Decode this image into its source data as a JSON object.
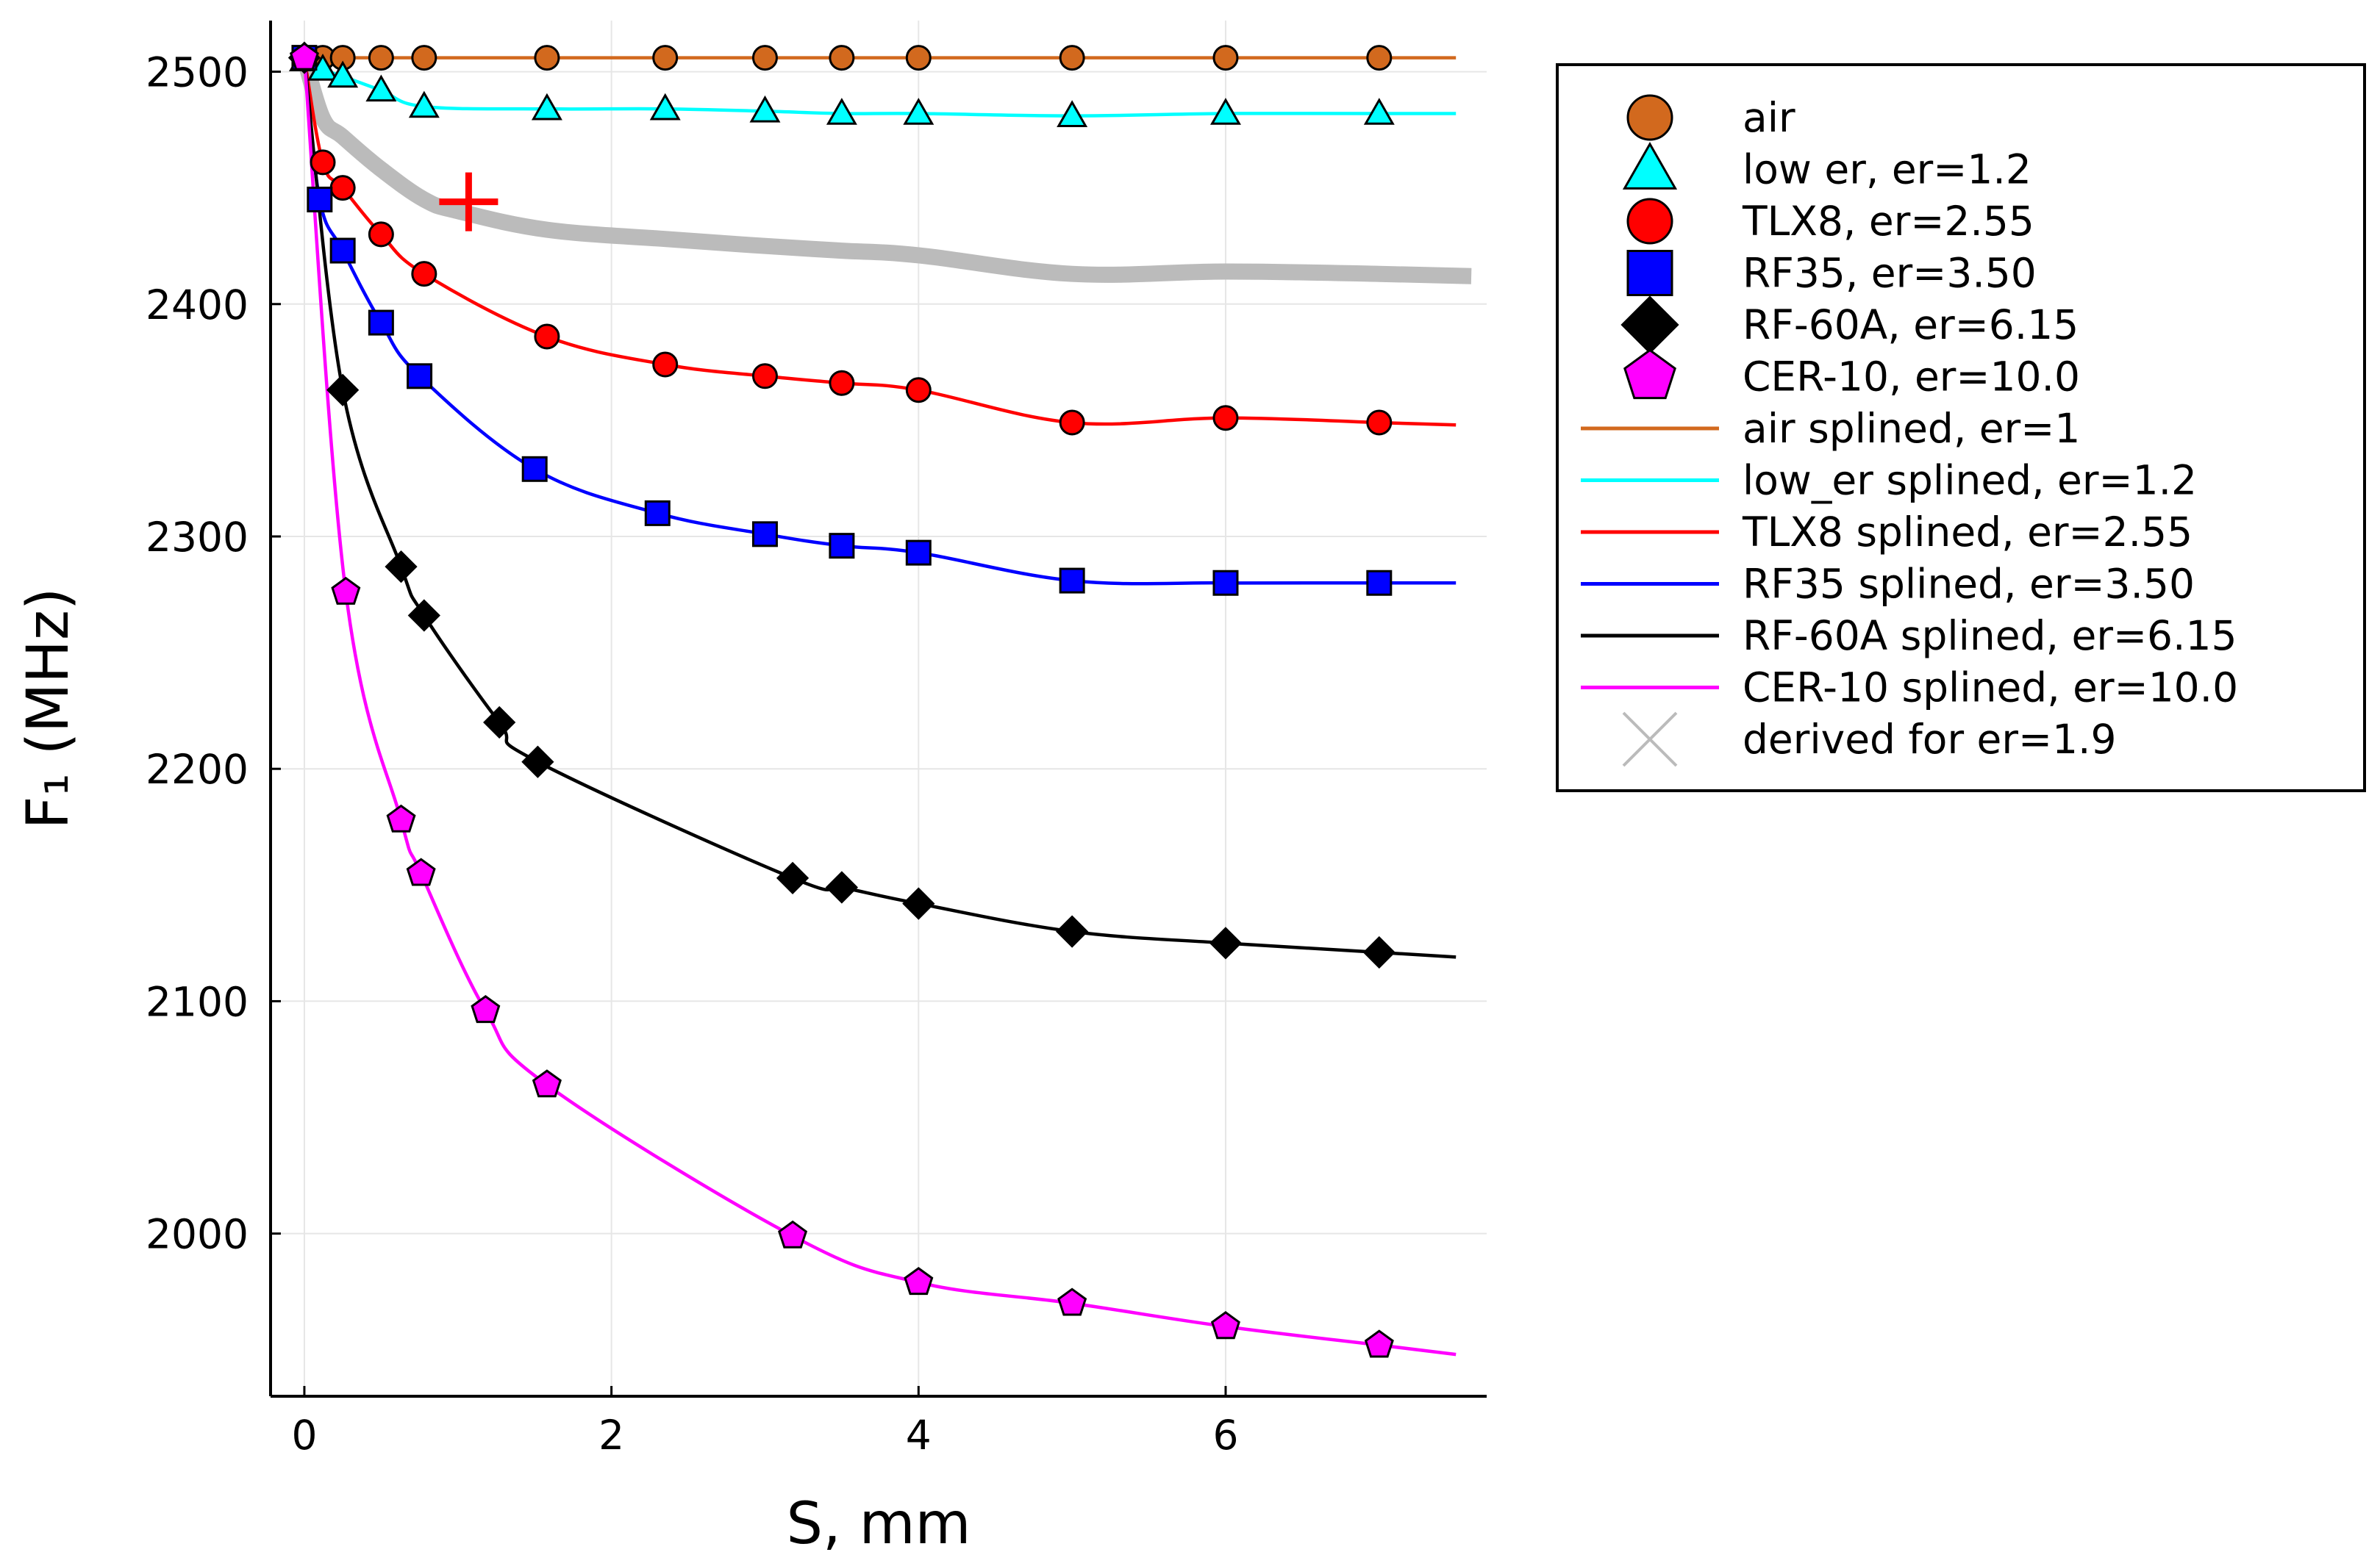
{
  "chart_data": {
    "type": "line",
    "xlabel": "S, mm",
    "ylabel": "F₁ (MHz)",
    "xlim": [
      -0.22,
      7.7
    ],
    "ylim": [
      1930,
      2522
    ],
    "xticks": [
      0,
      2,
      4,
      6
    ],
    "yticks": [
      2000,
      2100,
      2200,
      2300,
      2400,
      2500
    ],
    "grid": true,
    "legend_position": "outside-top-right",
    "marker_series": [
      {
        "name": "air",
        "color": "#D2691E",
        "marker": "circle",
        "x": [
          0,
          0.12,
          0.25,
          0.5,
          0.78,
          1.58,
          2.35,
          3.0,
          3.5,
          4.0,
          5.0,
          6.0,
          7.0
        ],
        "y": [
          2506,
          2506,
          2506,
          2506,
          2506,
          2506,
          2506,
          2506,
          2506,
          2506,
          2506,
          2506,
          2506
        ]
      },
      {
        "name": "low er, er=1.2",
        "color": "#00FFFF",
        "marker": "triangle",
        "x": [
          0,
          0.12,
          0.25,
          0.5,
          0.78,
          1.58,
          2.35,
          3.0,
          3.5,
          4.0,
          5.0,
          6.0,
          7.0
        ],
        "y": [
          2505,
          2501,
          2498,
          2492,
          2485,
          2484,
          2484,
          2483,
          2482,
          2482,
          2481,
          2482,
          2482
        ]
      },
      {
        "name": "TLX8, er=2.55",
        "color": "#FF0000",
        "marker": "circle",
        "x": [
          0,
          0.12,
          0.25,
          0.5,
          0.78,
          1.58,
          2.35,
          3.0,
          3.5,
          4.0,
          5.0,
          6.0,
          7.0
        ],
        "y": [
          2506,
          2461,
          2450,
          2430,
          2413,
          2386,
          2374,
          2369,
          2366,
          2363,
          2349,
          2351,
          2349
        ]
      },
      {
        "name": "RF35, er=3.50",
        "color": "#0000FF",
        "marker": "square",
        "x": [
          0,
          0.1,
          0.25,
          0.5,
          0.75,
          1.5,
          2.3,
          3.0,
          3.5,
          4.0,
          5.0,
          6.0,
          7.0
        ],
        "y": [
          2506,
          2445,
          2423,
          2392,
          2369,
          2329,
          2310,
          2301,
          2296,
          2293,
          2281,
          2280,
          2280
        ]
      },
      {
        "name": "RF-60A, er=6.15",
        "color": "#000000",
        "marker": "diamond",
        "x": [
          0,
          0.25,
          0.63,
          0.78,
          1.27,
          1.52,
          3.18,
          3.5,
          4.0,
          5.0,
          6.0,
          7.0
        ],
        "y": [
          2506,
          2363,
          2287,
          2266,
          2220,
          2203,
          2153,
          2149,
          2142,
          2130,
          2125,
          2121
        ]
      },
      {
        "name": "CER-10, er=10.0",
        "color": "#FF00FF",
        "marker": "pentagon",
        "x": [
          0,
          0.27,
          0.63,
          0.76,
          1.18,
          1.58,
          3.18,
          4.0,
          5.0,
          6.0,
          7.0
        ],
        "y": [
          2506,
          2276,
          2178,
          2155,
          2096,
          2064,
          1999,
          1979,
          1970,
          1960,
          1952
        ]
      }
    ],
    "spline_series": [
      {
        "name": "air splined, er=1",
        "color": "#D2691E",
        "x": [
          0,
          1,
          2,
          3,
          4,
          5,
          6,
          7,
          7.5
        ],
        "y": [
          2506,
          2506,
          2506,
          2506,
          2506,
          2506,
          2506,
          2506,
          2506
        ]
      },
      {
        "name": "low_er splined, er=1.2",
        "color": "#00FFFF",
        "x": [
          0,
          0.12,
          0.25,
          0.5,
          0.78,
          1.58,
          2.35,
          3.0,
          3.5,
          4.0,
          5.0,
          6.0,
          7.0,
          7.5
        ],
        "y": [
          2505,
          2501,
          2498,
          2492,
          2485,
          2484,
          2484,
          2483,
          2482,
          2482,
          2481,
          2482,
          2482,
          2482
        ]
      },
      {
        "name": "TLX8 splined, er=2.55",
        "color": "#FF0000",
        "x": [
          0,
          0.12,
          0.25,
          0.5,
          0.78,
          1.58,
          2.35,
          3.0,
          3.5,
          4.0,
          5.0,
          6.0,
          7.0,
          7.5
        ],
        "y": [
          2506,
          2461,
          2450,
          2430,
          2413,
          2386,
          2374,
          2369,
          2366,
          2363,
          2349,
          2351,
          2349,
          2348
        ]
      },
      {
        "name": "RF35 splined, er=3.50",
        "color": "#0000FF",
        "x": [
          0,
          0.1,
          0.25,
          0.5,
          0.75,
          1.5,
          2.3,
          3.0,
          3.5,
          4.0,
          5.0,
          6.0,
          7.0,
          7.5
        ],
        "y": [
          2506,
          2445,
          2423,
          2392,
          2369,
          2329,
          2310,
          2301,
          2296,
          2293,
          2281,
          2280,
          2280,
          2280
        ]
      },
      {
        "name": "RF-60A splined, er=6.15",
        "color": "#000000",
        "x": [
          0,
          0.25,
          0.63,
          0.78,
          1.27,
          1.52,
          3.18,
          3.5,
          4.0,
          5.0,
          6.0,
          7.0,
          7.5
        ],
        "y": [
          2506,
          2363,
          2287,
          2266,
          2220,
          2203,
          2153,
          2149,
          2142,
          2130,
          2125,
          2121,
          2119
        ]
      },
      {
        "name": "CER-10 splined, er=10.0",
        "color": "#FF00FF",
        "x": [
          0,
          0.27,
          0.63,
          0.76,
          1.18,
          1.58,
          3.18,
          4.0,
          5.0,
          6.0,
          7.0,
          7.5
        ],
        "y": [
          2506,
          2276,
          2178,
          2155,
          2096,
          2064,
          1999,
          1979,
          1970,
          1960,
          1952,
          1948
        ]
      }
    ],
    "derived_series": {
      "name": "derived for er=1.9",
      "color": "#BBBBBB",
      "x": [
        0,
        0.12,
        0.25,
        0.5,
        0.78,
        1.0,
        1.58,
        2.35,
        3.0,
        3.5,
        4.0,
        5.0,
        6.0,
        7.0,
        7.6
      ],
      "y": [
        2506,
        2480,
        2472,
        2458,
        2445,
        2440,
        2432,
        2428,
        2425,
        2423,
        2421,
        2413,
        2414,
        2413,
        2412
      ]
    },
    "annotation": {
      "type": "plus",
      "color": "#FF0000",
      "x": 1.07,
      "y": 2444
    }
  }
}
